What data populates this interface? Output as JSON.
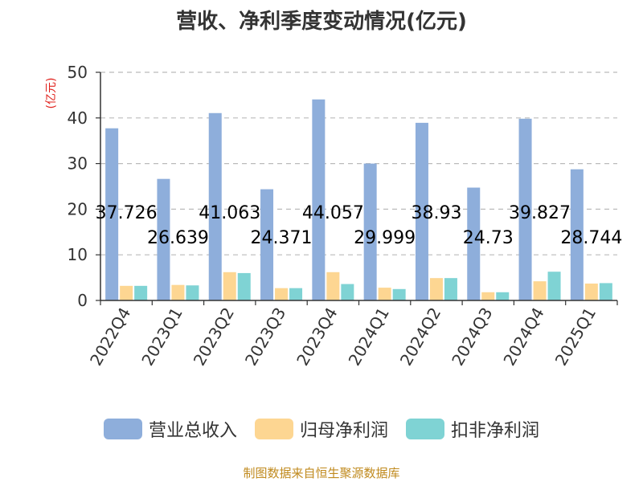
{
  "chart_data": {
    "type": "bar",
    "title": "营收、净利季度变动情况(亿元)",
    "unit_label": "(亿元)",
    "categories": [
      "2022Q4",
      "2023Q1",
      "2023Q2",
      "2023Q3",
      "2023Q4",
      "2024Q1",
      "2024Q2",
      "2024Q3",
      "2024Q4",
      "2025Q1"
    ],
    "series": [
      {
        "name": "营业总收入",
        "color": "#8eaedb",
        "values": [
          37.726,
          26.639,
          41.063,
          24.371,
          44.057,
          29.999,
          38.93,
          24.73,
          39.827,
          28.744
        ],
        "labels": [
          "37.726",
          "26.639",
          "41.063",
          "24.371",
          "44.057",
          "29.999",
          "38.93",
          "24.73",
          "39.827",
          "28.744"
        ]
      },
      {
        "name": "归母净利润",
        "color": "#fdd692",
        "values": [
          3.2,
          3.4,
          6.2,
          2.7,
          6.2,
          2.8,
          4.9,
          1.8,
          4.2,
          3.7
        ]
      },
      {
        "name": "扣非净利润",
        "color": "#7fd3d4",
        "values": [
          3.2,
          3.3,
          6.0,
          2.7,
          3.6,
          2.5,
          4.9,
          1.8,
          6.3,
          3.8
        ]
      }
    ],
    "ylim": [
      0,
      50
    ],
    "yticks": [
      0,
      10,
      20,
      30,
      40,
      50
    ],
    "grid": true,
    "legend_position": "bottom"
  },
  "source": "制图数据来自恒生聚源数据库"
}
